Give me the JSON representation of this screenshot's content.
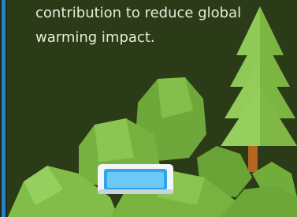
{
  "text": {
    "lines": [
      "contribution to reduce global",
      "warming impact."
    ]
  }
}
